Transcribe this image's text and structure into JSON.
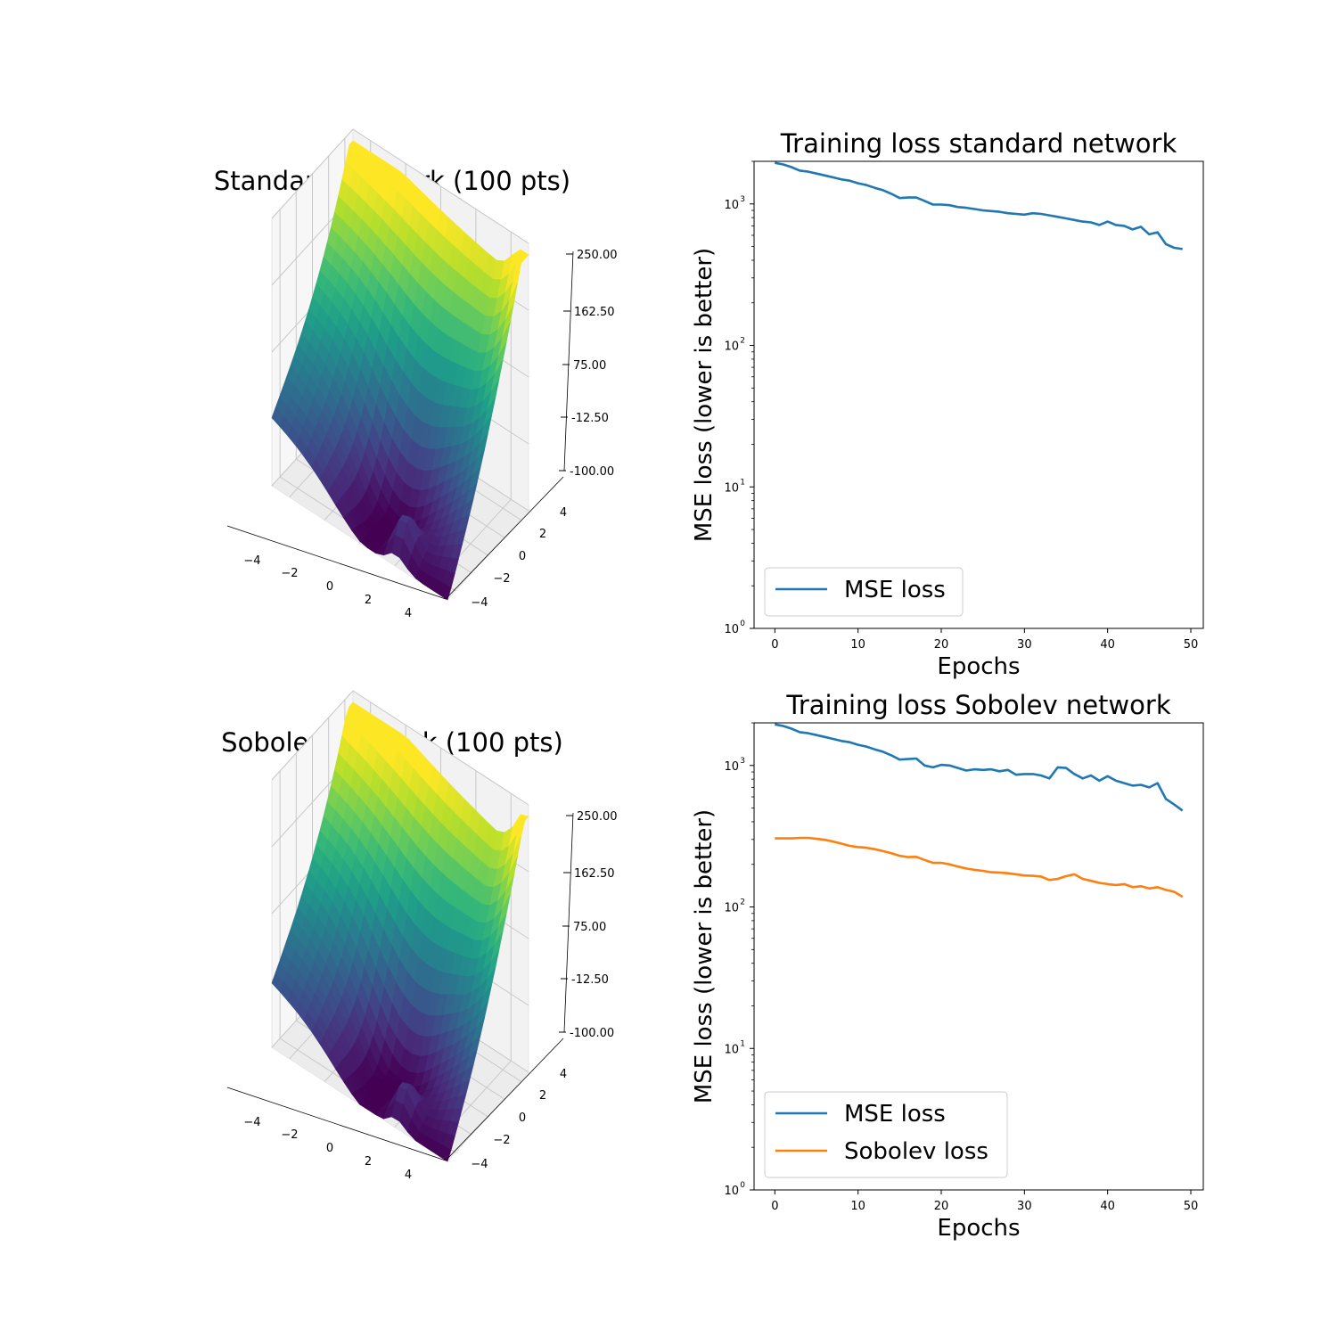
{
  "chart_data": [
    {
      "type": "surface3d",
      "title": "Standard network (100 pts)",
      "x_ticks": [
        "−4",
        "−2",
        "0",
        "2",
        "4"
      ],
      "y_ticks": [
        "−4",
        "−2",
        "0",
        "2",
        "4"
      ],
      "z_ticks": [
        "-100.00",
        "-12.50",
        "75.00",
        "162.50",
        "250.00"
      ],
      "zlim": [
        -100,
        250
      ],
      "colormap": "viridis",
      "corner_values": {
        "far_left": 170,
        "far_right": 130,
        "near_left": -10,
        "near_right": -100
      },
      "ridge_value": 85,
      "bump_value": 60
    },
    {
      "type": "line",
      "title": "Training loss standard network",
      "xlabel": "Epochs",
      "ylabel": "MSE loss (lower is better)",
      "yscale": "log",
      "ylim": [
        1,
        2000
      ],
      "xlim": [
        -2.5,
        51.5
      ],
      "x_ticks": [
        "0",
        "10",
        "20",
        "30",
        "40",
        "50"
      ],
      "y_ticks": [
        "10",
        "10",
        "10",
        "10"
      ],
      "y_tick_exponents": [
        "0",
        "1",
        "2",
        "3"
      ],
      "legend_position": "lower-left",
      "series": [
        {
          "name": "MSE loss",
          "color": "#1f77b4",
          "values": [
            1950,
            1900,
            1820,
            1720,
            1690,
            1640,
            1590,
            1540,
            1490,
            1460,
            1400,
            1360,
            1300,
            1250,
            1180,
            1100,
            1110,
            1110,
            1050,
            990,
            990,
            980,
            950,
            940,
            920,
            900,
            890,
            880,
            860,
            850,
            840,
            860,
            850,
            830,
            810,
            790,
            770,
            750,
            740,
            710,
            750,
            710,
            700,
            660,
            690,
            610,
            630,
            520,
            490,
            480
          ]
        }
      ]
    },
    {
      "type": "surface3d",
      "title": "Sobolev network (100 pts)",
      "x_ticks": [
        "−4",
        "−2",
        "0",
        "2",
        "4"
      ],
      "y_ticks": [
        "−4",
        "−2",
        "0",
        "2",
        "4"
      ],
      "z_ticks": [
        "-100.00",
        "-12.50",
        "75.00",
        "162.50",
        "250.00"
      ],
      "zlim": [
        -100,
        250
      ],
      "colormap": "viridis",
      "corner_values": {
        "far_left": 175,
        "far_right": 110,
        "near_left": -15,
        "near_right": -100
      },
      "ridge_value": 90,
      "bump_value": 55
    },
    {
      "type": "line",
      "title": "Training loss Sobolev network",
      "xlabel": "Epochs",
      "ylabel": "MSE loss (lower is better)",
      "yscale": "log",
      "ylim": [
        1,
        2000
      ],
      "xlim": [
        -2.5,
        51.5
      ],
      "x_ticks": [
        "0",
        "10",
        "20",
        "30",
        "40",
        "50"
      ],
      "y_ticks": [
        "10",
        "10",
        "10",
        "10"
      ],
      "y_tick_exponents": [
        "0",
        "1",
        "2",
        "3"
      ],
      "legend_position": "lower-left",
      "series": [
        {
          "name": "MSE loss",
          "color": "#1f77b4",
          "values": [
            1950,
            1900,
            1820,
            1720,
            1690,
            1640,
            1590,
            1540,
            1490,
            1460,
            1400,
            1360,
            1300,
            1250,
            1180,
            1100,
            1110,
            1120,
            1000,
            970,
            1010,
            1000,
            960,
            920,
            940,
            930,
            940,
            910,
            930,
            860,
            870,
            870,
            850,
            810,
            970,
            960,
            870,
            810,
            850,
            780,
            840,
            780,
            750,
            720,
            730,
            700,
            750,
            580,
            530,
            480
          ]
        },
        {
          "name": "Sobolev loss",
          "color": "#ff7f0e",
          "values": [
            305,
            305,
            305,
            308,
            308,
            303,
            298,
            290,
            280,
            270,
            265,
            262,
            256,
            248,
            240,
            230,
            225,
            226,
            215,
            205,
            205,
            200,
            193,
            187,
            183,
            180,
            176,
            175,
            173,
            170,
            167,
            166,
            164,
            155,
            158,
            165,
            170,
            158,
            153,
            148,
            145,
            143,
            145,
            138,
            140,
            135,
            138,
            132,
            128,
            118
          ]
        }
      ]
    }
  ]
}
